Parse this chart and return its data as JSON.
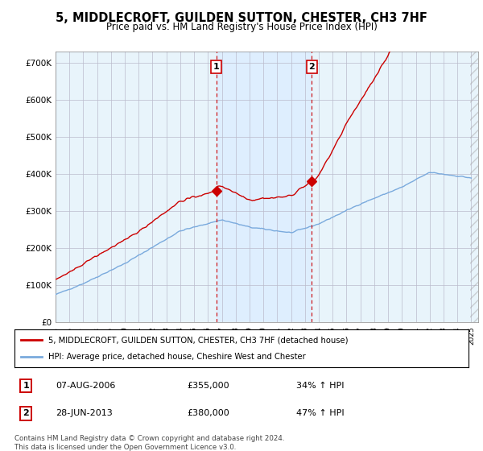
{
  "title": "5, MIDDLECROFT, GUILDEN SUTTON, CHESTER, CH3 7HF",
  "subtitle": "Price paid vs. HM Land Registry's House Price Index (HPI)",
  "ytick_vals": [
    0,
    100000,
    200000,
    300000,
    400000,
    500000,
    600000,
    700000
  ],
  "ylim": [
    0,
    730000
  ],
  "xlim_start": 1995.0,
  "xlim_end": 2025.5,
  "sale1_x": 2006.6,
  "sale1_y": 355000,
  "sale2_x": 2013.5,
  "sale2_y": 380000,
  "legend_line1": "5, MIDDLECROFT, GUILDEN SUTTON, CHESTER, CH3 7HF (detached house)",
  "legend_line2": "HPI: Average price, detached house, Cheshire West and Chester",
  "table_row1_num": "1",
  "table_row1_date": "07-AUG-2006",
  "table_row1_price": "£355,000",
  "table_row1_hpi": "34% ↑ HPI",
  "table_row2_num": "2",
  "table_row2_date": "28-JUN-2013",
  "table_row2_price": "£380,000",
  "table_row2_hpi": "47% ↑ HPI",
  "footer": "Contains HM Land Registry data © Crown copyright and database right 2024.\nThis data is licensed under the Open Government Licence v3.0.",
  "red_color": "#cc0000",
  "blue_color": "#7aaadd",
  "fill_color": "#ddeeff",
  "plot_bg": "#e8f4fb",
  "background_color": "#ffffff",
  "grid_color": "#bbbbcc",
  "title_fontsize": 10.5,
  "subtitle_fontsize": 8.5
}
